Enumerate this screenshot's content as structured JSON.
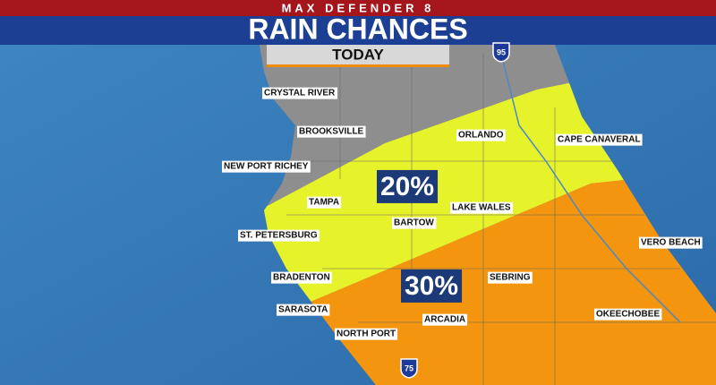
{
  "header": {
    "brand": "MAX DEFENDER 8",
    "title": "RAIN CHANCES",
    "subtitle": "TODAY"
  },
  "zones": [
    {
      "label": "20%"
    },
    {
      "label": "30%"
    }
  ],
  "cities": [
    "CRYSTAL RIVER",
    "BROOKSVILLE",
    "NEW PORT RICHEY",
    "TAMPA",
    "ST. PETERSBURG",
    "BRADENTON",
    "SARASOTA",
    "NORTH PORT",
    "ORLANDO",
    "CAPE CANAVERAL",
    "BARTOW",
    "LAKE WALES",
    "SEBRING",
    "ARCADIA",
    "VERO BEACH",
    "OKEECHOBEE"
  ],
  "highways": [
    "95",
    "75"
  ]
}
